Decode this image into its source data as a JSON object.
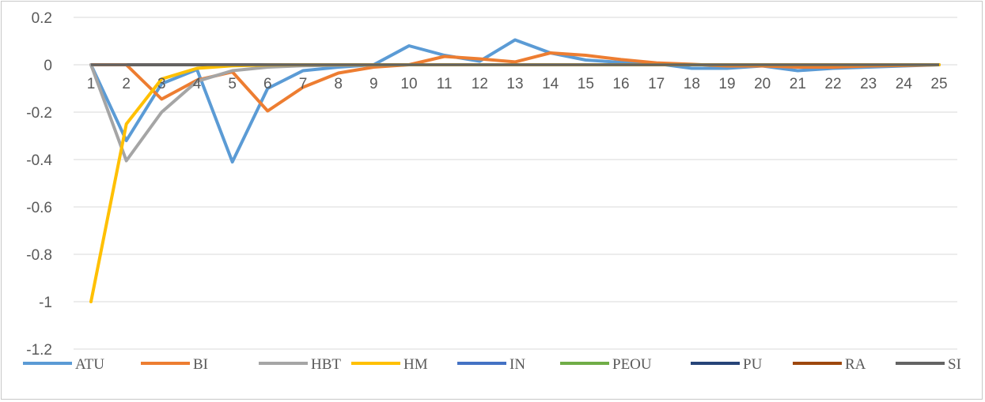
{
  "chart_data": {
    "type": "line",
    "title": "",
    "xlabel": "",
    "ylabel": "",
    "x": [
      1,
      2,
      3,
      4,
      5,
      6,
      7,
      8,
      9,
      10,
      11,
      12,
      13,
      14,
      15,
      16,
      17,
      18,
      19,
      20,
      21,
      22,
      23,
      24,
      25
    ],
    "ylim": [
      -1.2,
      0.2
    ],
    "yticks": [
      0.2,
      0,
      -0.2,
      -0.4,
      -0.6,
      -0.8,
      -1,
      -1.2
    ],
    "ytick_labels": [
      "0.2",
      "0",
      "-0.2",
      "-0.4",
      "-0.6",
      "-0.8",
      "-1",
      "-1.2"
    ],
    "grid": true,
    "legend_position": "bottom",
    "series": [
      {
        "name": "ATU",
        "color": "#5b9bd5",
        "values": [
          0,
          -0.32,
          -0.08,
          -0.02,
          -0.41,
          -0.1,
          -0.025,
          -0.01,
          0,
          0.08,
          0.04,
          0.015,
          0.105,
          0.05,
          0.02,
          0.01,
          0.005,
          -0.015,
          -0.015,
          -0.005,
          -0.025,
          -0.015,
          -0.01,
          -0.005,
          0
        ]
      },
      {
        "name": "BI",
        "color": "#ed7d31",
        "values": [
          0,
          0,
          -0.145,
          -0.065,
          -0.03,
          -0.195,
          -0.095,
          -0.035,
          -0.01,
          0,
          0.035,
          0.025,
          0.012,
          0.05,
          0.04,
          0.022,
          0.008,
          0.002,
          -0.005,
          -0.005,
          -0.01,
          -0.01,
          -0.005,
          -0.003,
          0
        ]
      },
      {
        "name": "HBT",
        "color": "#a5a5a5",
        "values": [
          0,
          -0.405,
          -0.2,
          -0.07,
          -0.025,
          -0.01,
          -0.004,
          -0.002,
          -0.001,
          0,
          0,
          0,
          0,
          0,
          0,
          0,
          0,
          0,
          0,
          0,
          0,
          0,
          0,
          0,
          0
        ]
      },
      {
        "name": "HM",
        "color": "#ffc000",
        "values": [
          -1,
          -0.25,
          -0.06,
          -0.015,
          -0.004,
          -0.001,
          0,
          0,
          0,
          0,
          0,
          0,
          0,
          0,
          0,
          0,
          0,
          0,
          0,
          0,
          0,
          0,
          0,
          0,
          0
        ]
      },
      {
        "name": "IN",
        "color": "#4472c4",
        "values": [
          0,
          0,
          0,
          0,
          0,
          0,
          0,
          0,
          0,
          0,
          0,
          0,
          0,
          0,
          0,
          0,
          0,
          0,
          0,
          0,
          0,
          0,
          0,
          0,
          0
        ]
      },
      {
        "name": "PEOU",
        "color": "#70ad47",
        "values": [
          0,
          0,
          0,
          0,
          0,
          0,
          0,
          0,
          0,
          0,
          0,
          0,
          0,
          0,
          0,
          0,
          0,
          0,
          0,
          0,
          0,
          0,
          0,
          0,
          0
        ]
      },
      {
        "name": "PU",
        "color": "#264478",
        "values": [
          0,
          0,
          0,
          0,
          0,
          0,
          0,
          0,
          0,
          0,
          0,
          0,
          0,
          0,
          0,
          0,
          0,
          0,
          0,
          0,
          0,
          0,
          0,
          0,
          0
        ]
      },
      {
        "name": "RA",
        "color": "#9e480e",
        "values": [
          0,
          0,
          0,
          0,
          0,
          0,
          0,
          0,
          0,
          0,
          0,
          0,
          0,
          0,
          0,
          0,
          0,
          0,
          0,
          0,
          0,
          0,
          0,
          0,
          0
        ]
      },
      {
        "name": "SI",
        "color": "#636363",
        "values": [
          0,
          0,
          0,
          0,
          0,
          0,
          0,
          0,
          0,
          0,
          0,
          0,
          0,
          0,
          0,
          0,
          0,
          0,
          0,
          0,
          0,
          0,
          0,
          0,
          0
        ]
      }
    ]
  }
}
